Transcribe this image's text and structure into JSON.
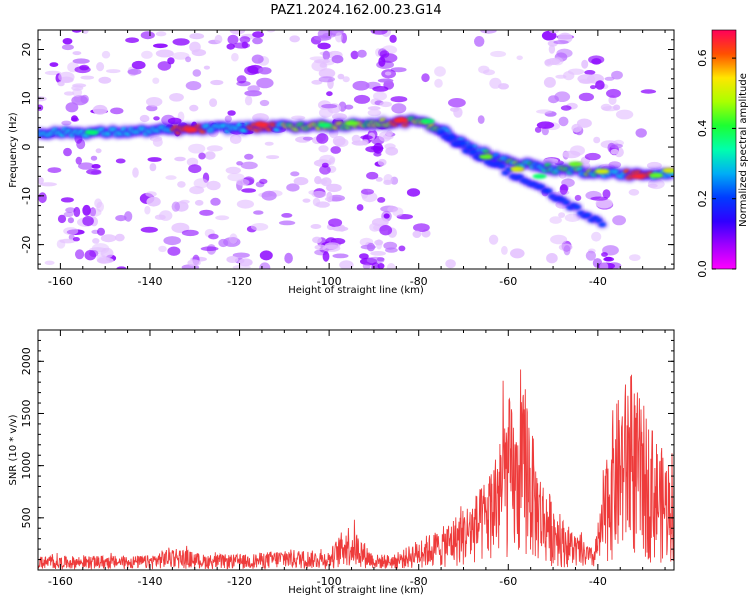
{
  "title": "PAZ1.2024.162.00.23.G14",
  "chart_data": [
    {
      "type": "heatmap",
      "xlabel": "Height of straight line (km)",
      "ylabel": "Frequency (Hz)",
      "xlim": [
        -165,
        -23
      ],
      "ylim": [
        -25,
        24
      ],
      "xticks": [
        "-160",
        "-140",
        "-120",
        "-100",
        "-80",
        "-60",
        "-40"
      ],
      "yticks": [
        "-20",
        "-10",
        "0",
        "10",
        "20"
      ],
      "colorbar": {
        "label": "Normalized spectral amplitude",
        "range": [
          0.0,
          0.68
        ],
        "ticks": [
          "0.0",
          "0.2",
          "0.4",
          "0.6"
        ],
        "colormap": "gist_rainbow_r"
      },
      "features": [
        {
          "name": "main-trace",
          "x": [
            -165,
            -150,
            -135,
            -120,
            -105,
            -90,
            -80,
            -75,
            -68,
            -60,
            -50,
            -42,
            -35,
            -28,
            -23
          ],
          "y": [
            3,
            3,
            3.5,
            4,
            4.3,
            4.8,
            5.3,
            3.5,
            -0.5,
            -3,
            -4.5,
            -5,
            -5.5,
            -6,
            -5
          ]
        },
        {
          "name": "lower-branch",
          "x": [
            -75,
            -68,
            -60,
            -52,
            -45,
            -39
          ],
          "y": [
            3,
            -1,
            -5,
            -9,
            -12.5,
            -16
          ]
        }
      ]
    },
    {
      "type": "line",
      "xlabel": "Height of straight line (km)",
      "ylabel": "SNR (10 * v/v)",
      "xlim": [
        -165,
        -23
      ],
      "ylim": [
        0,
        2300
      ],
      "xticks": [
        "-160",
        "-140",
        "-120",
        "-100",
        "-80",
        "-60",
        "-40"
      ],
      "yticks": [
        "500",
        "1000",
        "1500",
        "2000"
      ],
      "series_color": "#ee3b3b",
      "envelope": {
        "x": [
          -165,
          -140,
          -135,
          -128,
          -118,
          -110,
          -100,
          -96,
          -94,
          -90,
          -85,
          -80,
          -75,
          -70,
          -66,
          -64,
          -62,
          -60,
          -58,
          -56,
          -54,
          -52,
          -48,
          -44,
          -41,
          -39,
          -37,
          -35,
          -33,
          -30,
          -27,
          -25,
          -23
        ],
        "y": [
          130,
          140,
          230,
          150,
          150,
          200,
          180,
          450,
          380,
          150,
          150,
          300,
          400,
          600,
          800,
          1000,
          1300,
          1700,
          1400,
          1900,
          1100,
          850,
          500,
          300,
          200,
          700,
          1500,
          1700,
          1900,
          1600,
          1300,
          1100,
          1200
        ]
      }
    }
  ]
}
